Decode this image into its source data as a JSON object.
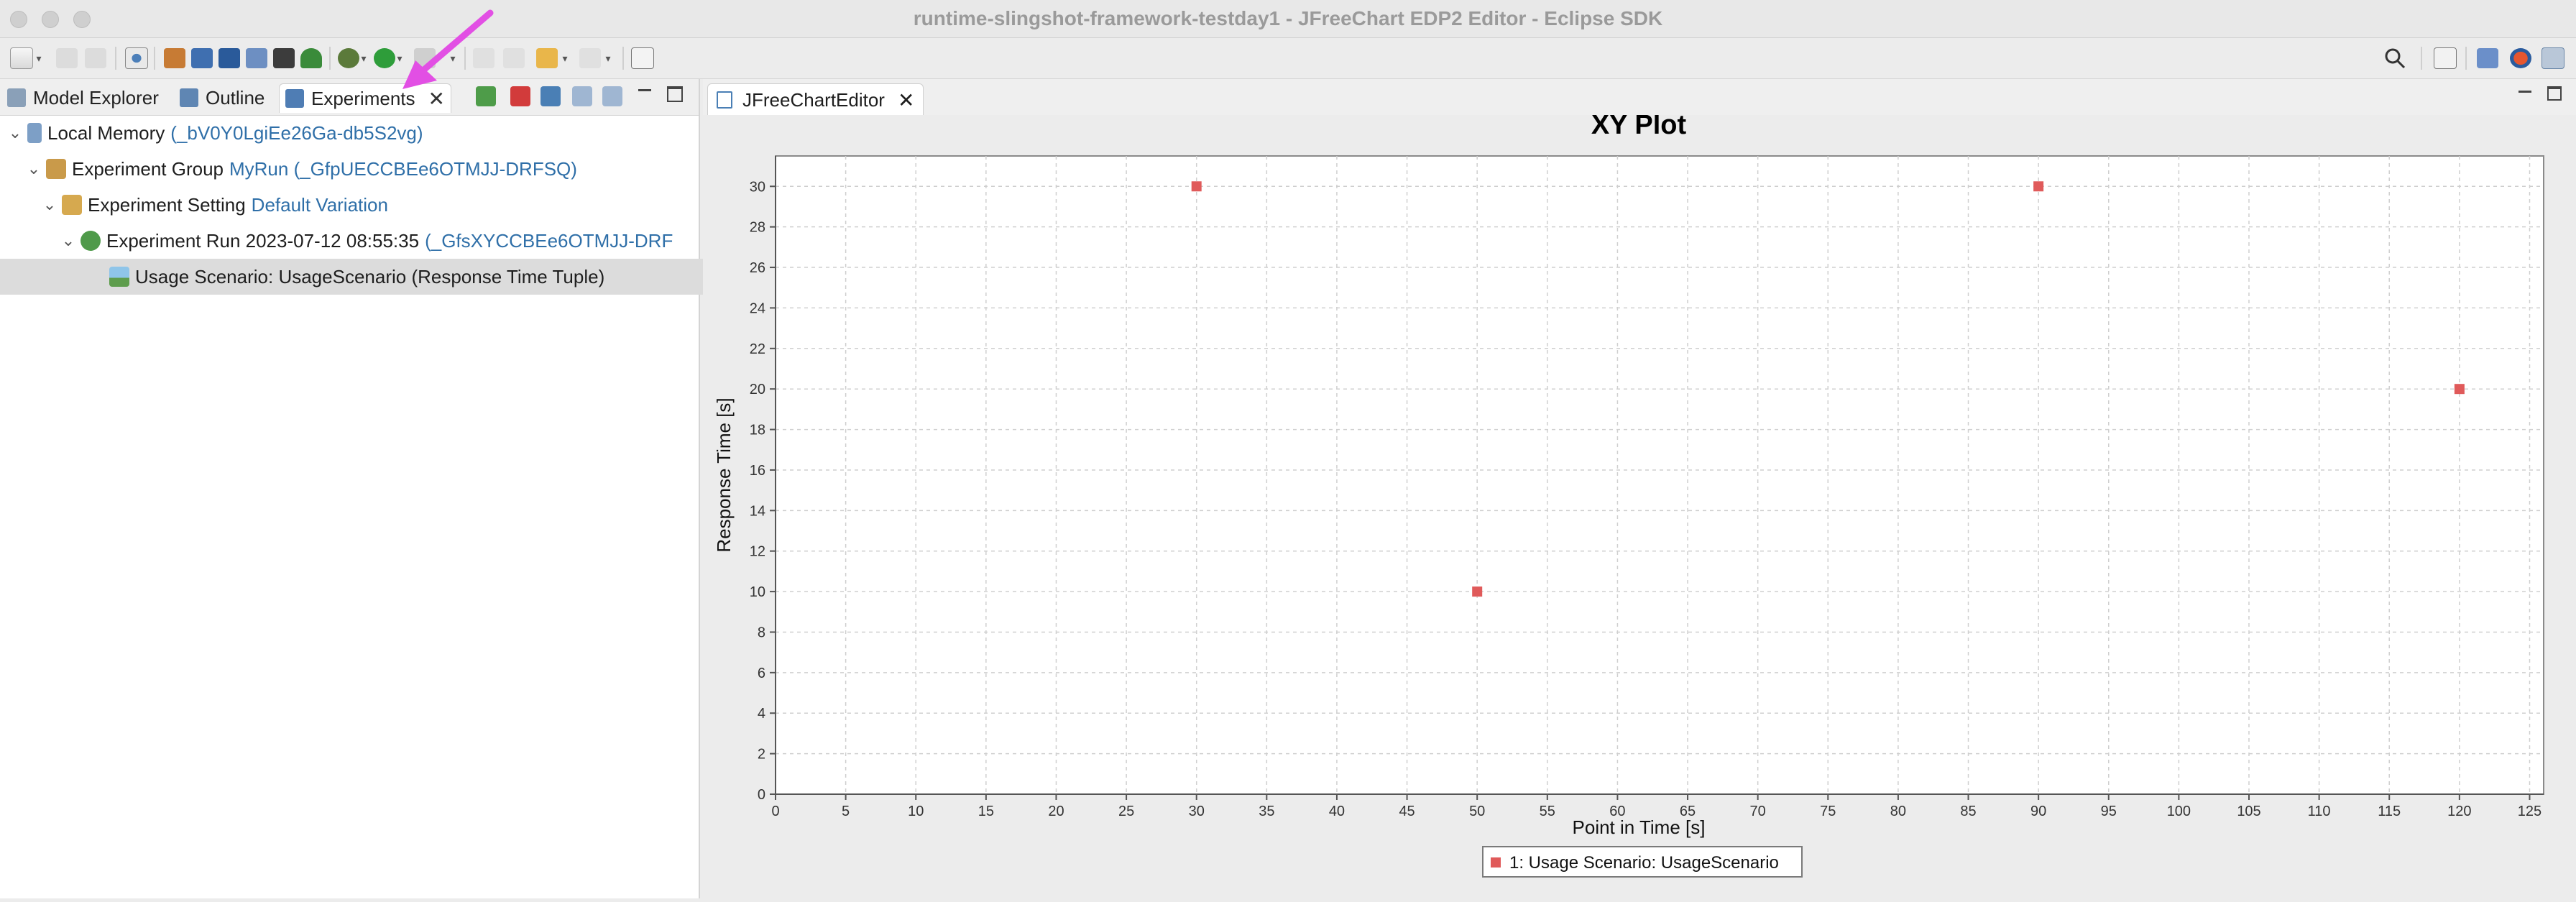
{
  "window": {
    "title": "runtime-slingshot-framework-testday1 - JFreeChart EDP2 Editor - Eclipse SDK"
  },
  "colors": {
    "accent_id": "#2f6fa8",
    "marker": "#e05a5a",
    "annotation_arrow": "#e24fe4"
  },
  "left_panel": {
    "tabs": [
      {
        "label": "Model Explorer",
        "icon": "model-explorer-icon"
      },
      {
        "label": "Outline",
        "icon": "outline-icon"
      },
      {
        "label": "Experiments",
        "icon": "experiments-icon",
        "active": true
      }
    ],
    "tree": [
      {
        "label": "Local Memory",
        "id": "(_bV0Y0LgiEe26Ga-db5S2vg)",
        "icon": "repository-icon"
      },
      {
        "label": "Experiment Group",
        "id": "MyRun (_GfpUECCBEe6OTMJJ-DRFSQ)",
        "icon": "experiment-group-icon"
      },
      {
        "label": "Experiment Setting",
        "id": "Default Variation",
        "icon": "experiment-setting-icon"
      },
      {
        "label": "Experiment Run 2023-07-12 08:55:35",
        "id": "(_GfsXYCCBEe6OTMJJ-DRF",
        "icon": "experiment-run-icon"
      },
      {
        "label": "Usage Scenario: UsageScenario (Response Time Tuple)",
        "id": "",
        "icon": "chart-image-icon",
        "selected": true
      }
    ]
  },
  "editor": {
    "tab_label": "JFreeChartEditor"
  },
  "chart_data": {
    "type": "scatter",
    "title": "XY Plot",
    "xlabel": "Point in Time [s]",
    "ylabel": "Response Time [s]",
    "xlim": [
      0,
      126
    ],
    "ylim": [
      0,
      31.5
    ],
    "xticks": [
      0,
      5,
      10,
      15,
      20,
      25,
      30,
      35,
      40,
      45,
      50,
      55,
      60,
      65,
      70,
      75,
      80,
      85,
      90,
      95,
      100,
      105,
      110,
      115,
      120,
      125
    ],
    "yticks": [
      0,
      2,
      4,
      6,
      8,
      10,
      12,
      14,
      16,
      18,
      20,
      22,
      24,
      26,
      28,
      30
    ],
    "grid": true,
    "legend_position": "bottom-center",
    "series": [
      {
        "name": "1: Usage Scenario: UsageScenario",
        "points": [
          {
            "x": 30,
            "y": 30
          },
          {
            "x": 50,
            "y": 10
          },
          {
            "x": 90,
            "y": 30
          },
          {
            "x": 120,
            "y": 20
          }
        ]
      }
    ]
  }
}
